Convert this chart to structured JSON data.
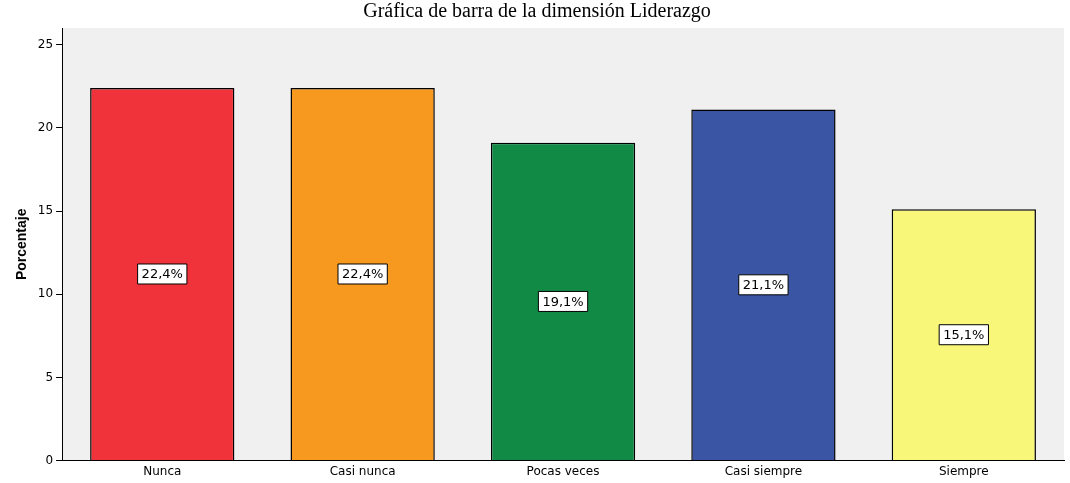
{
  "chart_data": {
    "type": "bar",
    "title": "Gráfica de barra de la dimensión Liderazgo",
    "ylabel": "Porcentaje",
    "categories": [
      "Nunca",
      "Casi nunca",
      "Pocas veces",
      "Casi siempre",
      "Siempre"
    ],
    "values": [
      22.4,
      22.4,
      19.1,
      21.1,
      15.1
    ],
    "colors": [
      "#f0333a",
      "#f7981f",
      "#118a46",
      "#3a55a4",
      "#f9f77a"
    ],
    "value_labels": [
      "22,4%",
      "22,4%",
      "19,1%",
      "21,1%",
      "15,1%"
    ],
    "ylim": [
      0,
      26
    ],
    "yticks": [
      0,
      5,
      10,
      15,
      20,
      25
    ],
    "grid": false
  }
}
